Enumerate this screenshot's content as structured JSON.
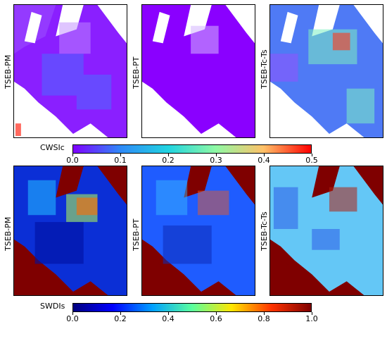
{
  "row1": {
    "labels": [
      "TSEB-PM",
      "TSEB-PT",
      "TSEB-Tc-Ts"
    ],
    "colorbar": {
      "title": "CWSIc",
      "ticks": [
        "0.0",
        "0.1",
        "0.2",
        "0.3",
        "0.4",
        "0.5"
      ],
      "colormap": "rainbow",
      "colors": [
        "#7f00ff",
        "#2f8af7",
        "#21d4e0",
        "#8ff9a4",
        "#ffc168",
        "#ff0000"
      ]
    }
  },
  "row2": {
    "labels": [
      "TSEB-PM",
      "TSEB-PT",
      "TSEB-Tc-Ts"
    ],
    "colorbar": {
      "title": "SWDIs",
      "ticks": [
        "0.0",
        "0.2",
        "0.4",
        "0.6",
        "0.8",
        "1.0"
      ],
      "colormap": "jet",
      "colors": [
        "#00007f",
        "#0000ff",
        "#00a0ff",
        "#5aff9d",
        "#ffe600",
        "#ff3300",
        "#7f0000"
      ]
    }
  }
}
